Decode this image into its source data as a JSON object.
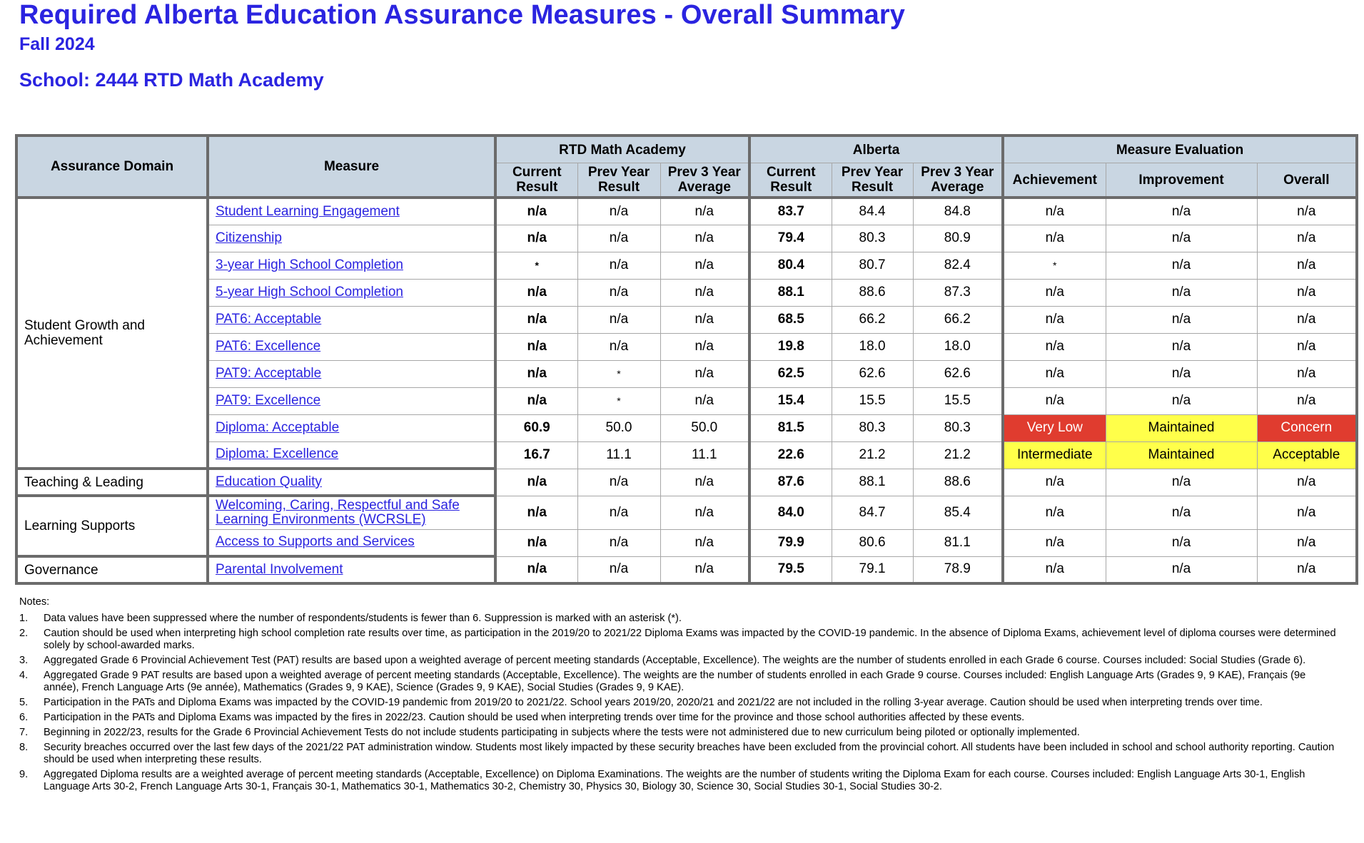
{
  "header": {
    "title": "Required Alberta Education Assurance Measures - Overall Summary",
    "term": "Fall 2024",
    "school": "School: 2444 RTD Math Academy"
  },
  "table": {
    "headers": {
      "domain": "Assurance Domain",
      "measure": "Measure",
      "group_school": "RTD Math Academy",
      "group_alberta": "Alberta",
      "group_eval": "Measure Evaluation",
      "current": "Current Result",
      "prev_year": "Prev Year Result",
      "prev3": "Prev 3 Year Average",
      "achievement": "Achievement",
      "improvement": "Improvement",
      "overall": "Overall"
    },
    "domains": {
      "student_growth": "Student Growth and Achievement",
      "teaching": "Teaching & Leading",
      "learning_supports": "Learning Supports",
      "governance": "Governance"
    },
    "rows": [
      {
        "measure": "Student Learning Engagement",
        "s_cur": "n/a",
        "s_prev": "n/a",
        "s_prev3": "n/a",
        "a_cur": "83.7",
        "a_prev": "84.4",
        "a_prev3": "84.8",
        "ach": "n/a",
        "imp": "n/a",
        "ovr": "n/a"
      },
      {
        "measure": "Citizenship",
        "s_cur": "n/a",
        "s_prev": "n/a",
        "s_prev3": "n/a",
        "a_cur": "79.4",
        "a_prev": "80.3",
        "a_prev3": "80.9",
        "ach": "n/a",
        "imp": "n/a",
        "ovr": "n/a"
      },
      {
        "measure": "3-year High School Completion",
        "s_cur": "*",
        "s_prev": "n/a",
        "s_prev3": "n/a",
        "a_cur": "80.4",
        "a_prev": "80.7",
        "a_prev3": "82.4",
        "ach": "*",
        "imp": "n/a",
        "ovr": "n/a"
      },
      {
        "measure": "5-year High School Completion",
        "s_cur": "n/a",
        "s_prev": "n/a",
        "s_prev3": "n/a",
        "a_cur": "88.1",
        "a_prev": "88.6",
        "a_prev3": "87.3",
        "ach": "n/a",
        "imp": "n/a",
        "ovr": "n/a"
      },
      {
        "measure": "PAT6: Acceptable",
        "s_cur": "n/a",
        "s_prev": "n/a",
        "s_prev3": "n/a",
        "a_cur": "68.5",
        "a_prev": "66.2",
        "a_prev3": "66.2",
        "ach": "n/a",
        "imp": "n/a",
        "ovr": "n/a"
      },
      {
        "measure": "PAT6: Excellence",
        "s_cur": "n/a",
        "s_prev": "n/a",
        "s_prev3": "n/a",
        "a_cur": "19.8",
        "a_prev": "18.0",
        "a_prev3": "18.0",
        "ach": "n/a",
        "imp": "n/a",
        "ovr": "n/a"
      },
      {
        "measure": "PAT9: Acceptable",
        "s_cur": "n/a",
        "s_prev": "*",
        "s_prev3": "n/a",
        "a_cur": "62.5",
        "a_prev": "62.6",
        "a_prev3": "62.6",
        "ach": "n/a",
        "imp": "n/a",
        "ovr": "n/a"
      },
      {
        "measure": "PAT9: Excellence",
        "s_cur": "n/a",
        "s_prev": "*",
        "s_prev3": "n/a",
        "a_cur": "15.4",
        "a_prev": "15.5",
        "a_prev3": "15.5",
        "ach": "n/a",
        "imp": "n/a",
        "ovr": "n/a"
      },
      {
        "measure": "Diploma: Acceptable",
        "s_cur": "60.9",
        "s_prev": "50.0",
        "s_prev3": "50.0",
        "a_cur": "81.5",
        "a_prev": "80.3",
        "a_prev3": "80.3",
        "ach": "Very Low",
        "imp": "Maintained",
        "ovr": "Concern"
      },
      {
        "measure": "Diploma: Excellence",
        "s_cur": "16.7",
        "s_prev": "11.1",
        "s_prev3": "11.1",
        "a_cur": "22.6",
        "a_prev": "21.2",
        "a_prev3": "21.2",
        "ach": "Intermediate",
        "imp": "Maintained",
        "ovr": "Acceptable"
      },
      {
        "measure": "Education Quality",
        "s_cur": "n/a",
        "s_prev": "n/a",
        "s_prev3": "n/a",
        "a_cur": "87.6",
        "a_prev": "88.1",
        "a_prev3": "88.6",
        "ach": "n/a",
        "imp": "n/a",
        "ovr": "n/a"
      },
      {
        "measure": "Welcoming, Caring, Respectful and Safe Learning Environments (WCRSLE)",
        "s_cur": "n/a",
        "s_prev": "n/a",
        "s_prev3": "n/a",
        "a_cur": "84.0",
        "a_prev": "84.7",
        "a_prev3": "85.4",
        "ach": "n/a",
        "imp": "n/a",
        "ovr": "n/a"
      },
      {
        "measure": "Access to Supports and Services",
        "s_cur": "n/a",
        "s_prev": "n/a",
        "s_prev3": "n/a",
        "a_cur": "79.9",
        "a_prev": "80.6",
        "a_prev3": "81.1",
        "ach": "n/a",
        "imp": "n/a",
        "ovr": "n/a"
      },
      {
        "measure": "Parental Involvement",
        "s_cur": "n/a",
        "s_prev": "n/a",
        "s_prev3": "n/a",
        "a_cur": "79.5",
        "a_prev": "79.1",
        "a_prev3": "78.9",
        "ach": "n/a",
        "imp": "n/a",
        "ovr": "n/a"
      }
    ],
    "eval_colors": {
      "very_low": "#e03c2f",
      "concern": "#e03c2f",
      "maintained": "#ffff4a",
      "intermediate": "#ffff4a",
      "acceptable": "#ffff4a"
    }
  },
  "notes": {
    "heading": "Notes:",
    "items": [
      {
        "num": "1.",
        "text": "Data values have been suppressed where the number of respondents/students is fewer than 6. Suppression is marked with an asterisk (*)."
      },
      {
        "num": "2.",
        "text": "Caution should be used when interpreting high school completion rate results over time, as participation in the 2019/20 to 2021/22 Diploma Exams was impacted by the COVID-19 pandemic. In the absence of Diploma Exams, achievement level of diploma courses were determined solely by school-awarded marks."
      },
      {
        "num": "3.",
        "text": "Aggregated Grade 6 Provincial Achievement Test (PAT) results are based upon a weighted average of percent meeting standards (Acceptable, Excellence). The weights are the number of students enrolled in each Grade 6 course. Courses included: Social Studies (Grade 6)."
      },
      {
        "num": "4.",
        "text": "Aggregated Grade 9 PAT results are based upon a weighted average of percent meeting standards (Acceptable, Excellence). The weights are the number of students enrolled in each Grade 9 course. Courses included: English Language Arts (Grades 9, 9 KAE), Français (9e année), French Language Arts (9e année), Mathematics (Grades 9, 9 KAE), Science (Grades 9, 9 KAE), Social Studies (Grades 9, 9 KAE)."
      },
      {
        "num": "5.",
        "text": "Participation in the PATs and Diploma Exams was impacted by the COVID-19 pandemic from 2019/20 to 2021/22. School years 2019/20, 2020/21 and 2021/22 are not included in the rolling 3-year average. Caution should be used when interpreting trends over time."
      },
      {
        "num": "6.",
        "text": "Participation in the PATs and Diploma Exams was impacted by the fires in 2022/23. Caution should be used when interpreting trends over time for the province and those school authorities affected by these events."
      },
      {
        "num": "7.",
        "text": "Beginning in 2022/23, results for the Grade 6 Provincial Achievement Tests do not include students participating in subjects where the tests were not administered due to new curriculum being piloted or optionally implemented."
      },
      {
        "num": "8.",
        "text": "Security breaches occurred over the last few days of the 2021/22 PAT administration window. Students most likely impacted by these security breaches have been excluded from the provincial cohort. All students have been included in school and school authority reporting. Caution should be used when interpreting these results."
      },
      {
        "num": "9.",
        "text": "Aggregated Diploma results are a weighted average of percent meeting standards (Acceptable, Excellence) on Diploma Examinations. The weights are the number of students writing the Diploma Exam for each course. Courses included: English Language Arts 30-1, English Language Arts 30-2, French Language Arts 30-1, Français 30-1, Mathematics 30-1, Mathematics 30-2, Chemistry 30, Physics 30, Biology 30, Science 30, Social Studies 30-1, Social Studies 30-2."
      }
    ]
  }
}
